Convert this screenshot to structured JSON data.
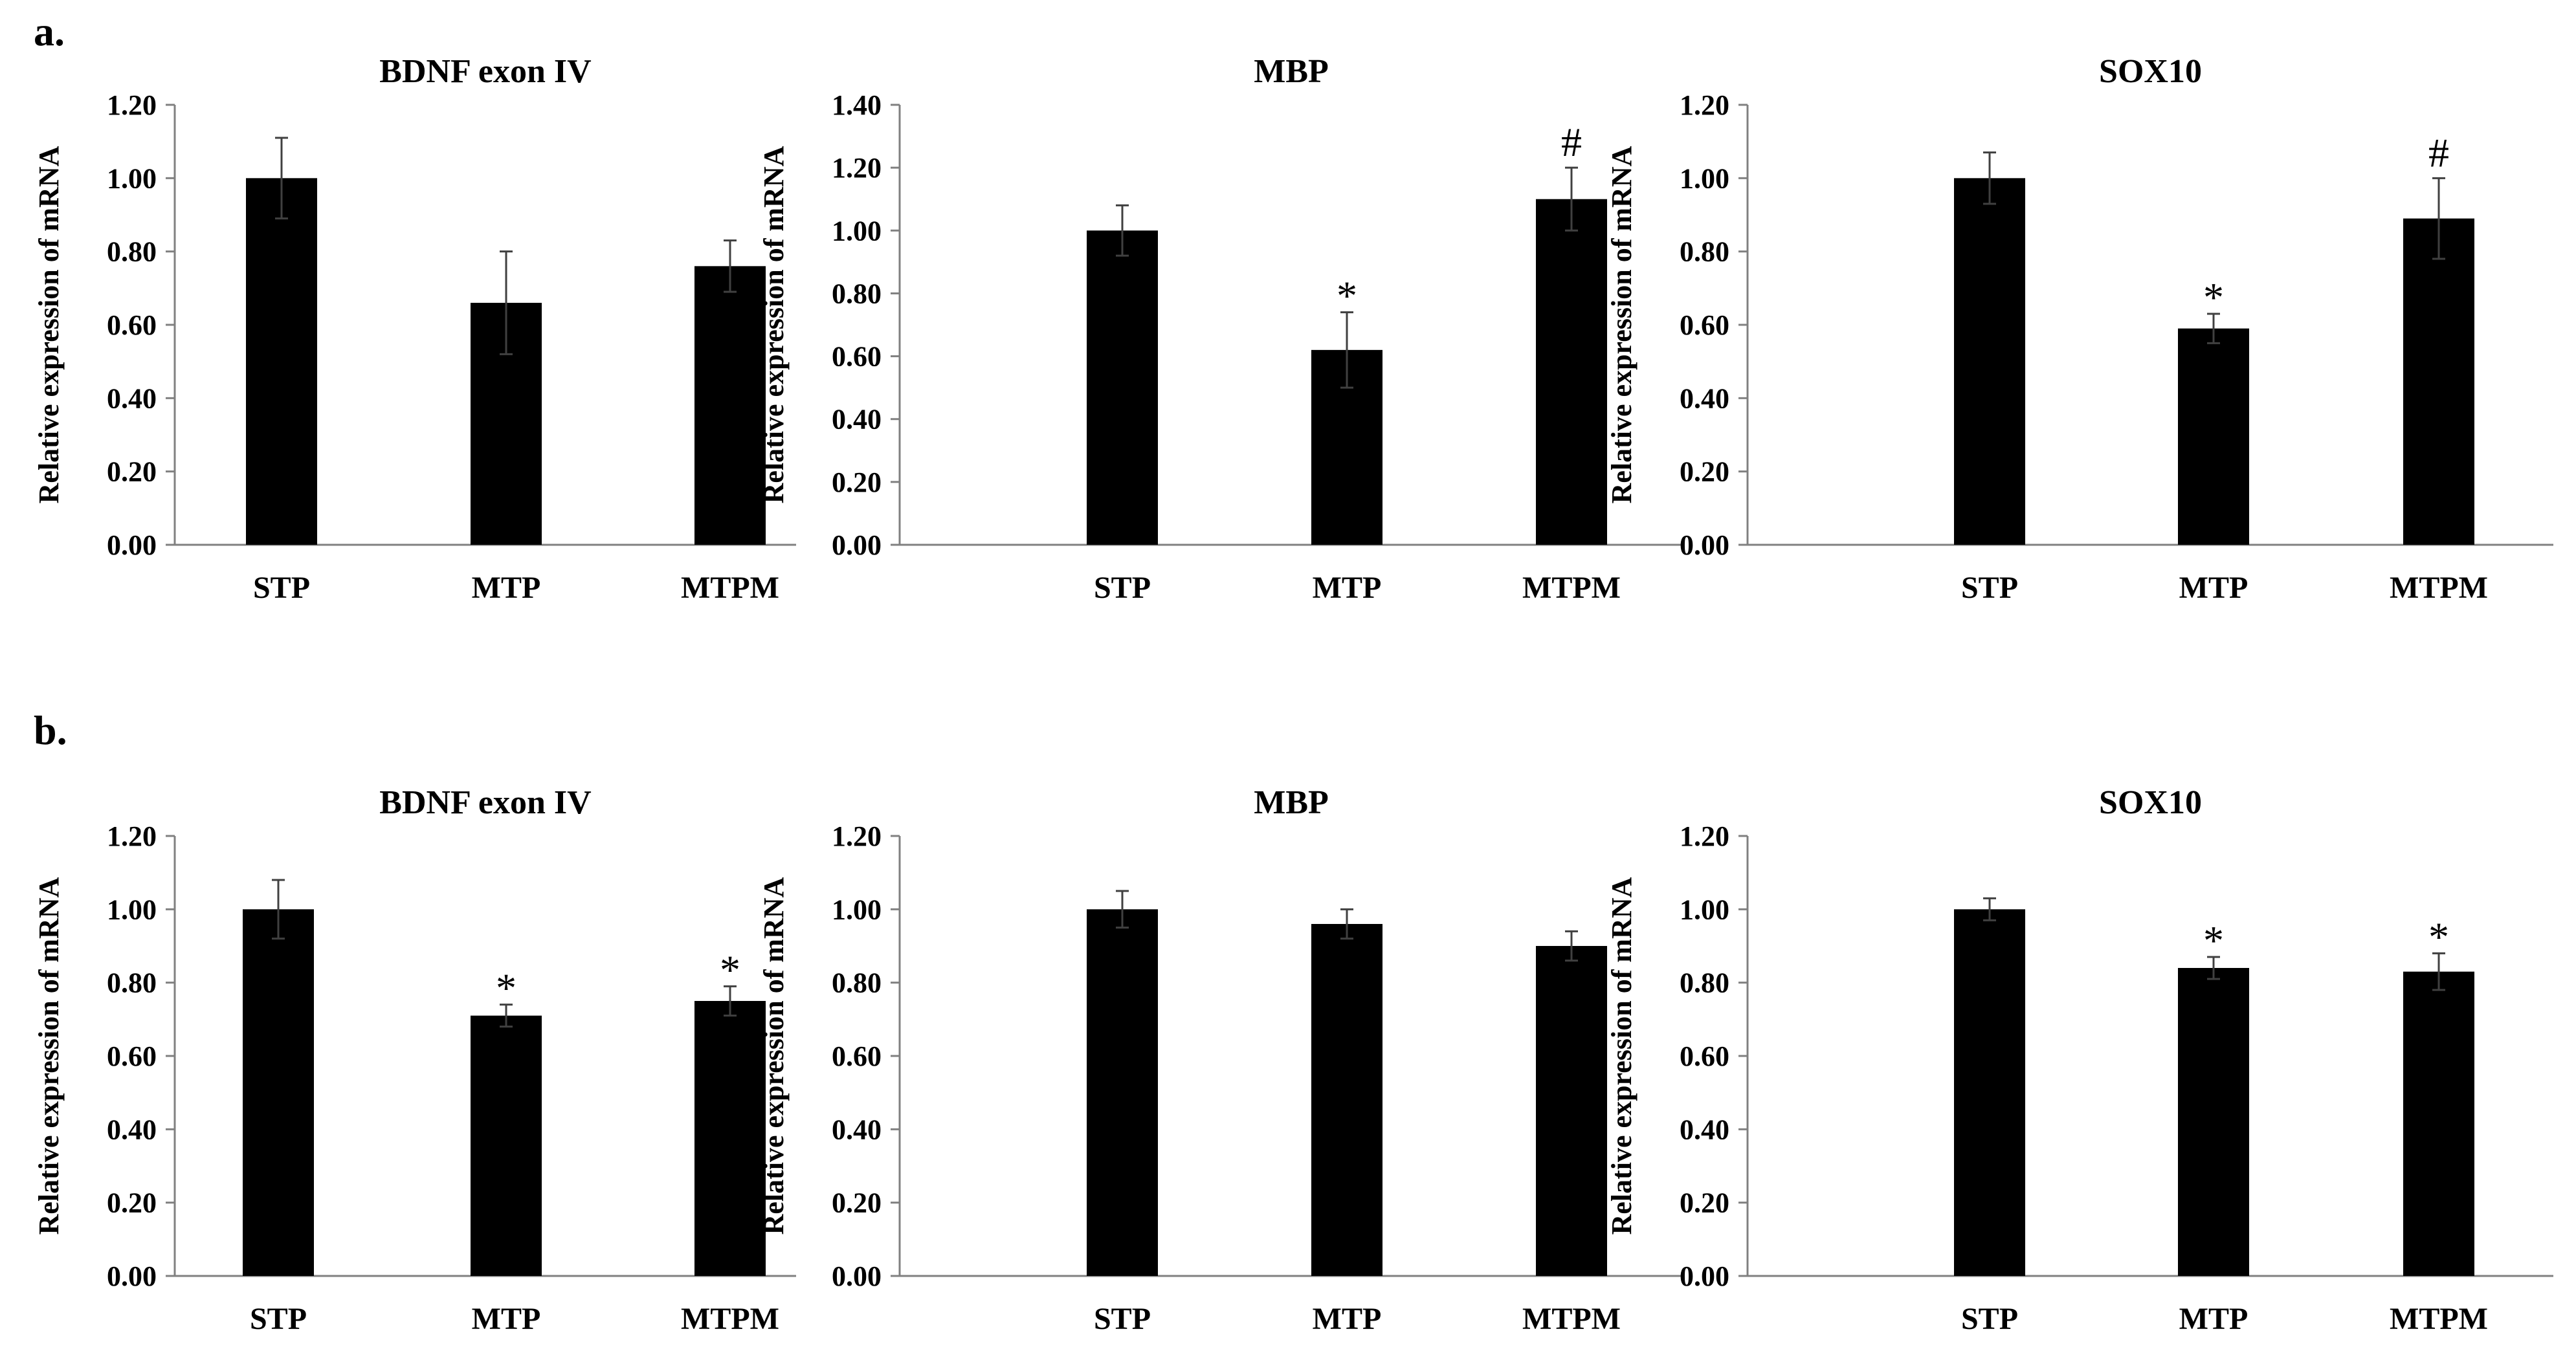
{
  "panel_labels": [
    "a.",
    "b."
  ],
  "chart_data": [
    {
      "type": "bar",
      "panel": "a",
      "title": "BDNF exon IV",
      "xlabel": "",
      "ylabel": "Relative expression of mRNA",
      "categories": [
        "STP",
        "MTP",
        "MTPM"
      ],
      "values": [
        1.0,
        0.66,
        0.76
      ],
      "errors": [
        0.11,
        0.14,
        0.07
      ],
      "ylim": [
        0,
        1.2
      ],
      "yticks": [
        "0.00",
        "0.20",
        "0.40",
        "0.60",
        "0.80",
        "1.00",
        "1.20"
      ],
      "annotations": [
        "",
        "",
        ""
      ]
    },
    {
      "type": "bar",
      "panel": "a",
      "title": "MBP",
      "xlabel": "",
      "ylabel": "Relative expression of mRNA",
      "categories": [
        "STP",
        "MTP",
        "MTPM"
      ],
      "values": [
        1.0,
        0.62,
        1.1
      ],
      "errors": [
        0.08,
        0.12,
        0.1
      ],
      "ylim": [
        0,
        1.4
      ],
      "yticks": [
        "0.00",
        "0.20",
        "0.40",
        "0.60",
        "0.80",
        "1.00",
        "1.20",
        "1.40"
      ],
      "annotations": [
        "",
        "*",
        "#"
      ]
    },
    {
      "type": "bar",
      "panel": "a",
      "title": "SOX10",
      "xlabel": "",
      "ylabel": "Relative expression of mRNA",
      "categories": [
        "STP",
        "MTP",
        "MTPM"
      ],
      "values": [
        1.0,
        0.59,
        0.89
      ],
      "errors": [
        0.07,
        0.04,
        0.11
      ],
      "ylim": [
        0,
        1.2
      ],
      "yticks": [
        "0.00",
        "0.20",
        "0.40",
        "0.60",
        "0.80",
        "1.00",
        "1.20"
      ],
      "annotations": [
        "",
        "*",
        "#"
      ]
    },
    {
      "type": "bar",
      "panel": "b",
      "title": "BDNF exon IV",
      "xlabel": "",
      "ylabel": "Relative expression of mRNA",
      "categories": [
        "STP",
        "MTP",
        "MTPM"
      ],
      "values": [
        1.0,
        0.71,
        0.75
      ],
      "errors": [
        0.08,
        0.03,
        0.04
      ],
      "ylim": [
        0,
        1.2
      ],
      "yticks": [
        "0.00",
        "0.20",
        "0.40",
        "0.60",
        "0.80",
        "1.00",
        "1.20"
      ],
      "annotations": [
        "",
        "*",
        "*"
      ]
    },
    {
      "type": "bar",
      "panel": "b",
      "title": "MBP",
      "xlabel": "",
      "ylabel": "Relative expression of mRNA",
      "categories": [
        "STP",
        "MTP",
        "MTPM"
      ],
      "values": [
        1.0,
        0.96,
        0.9
      ],
      "errors": [
        0.05,
        0.04,
        0.04
      ],
      "ylim": [
        0,
        1.2
      ],
      "yticks": [
        "0.00",
        "0.20",
        "0.40",
        "0.60",
        "0.80",
        "1.00",
        "1.20"
      ],
      "annotations": [
        "",
        "",
        ""
      ]
    },
    {
      "type": "bar",
      "panel": "b",
      "title": "SOX10",
      "xlabel": "",
      "ylabel": "Relative expression of mRNA",
      "categories": [
        "STP",
        "MTP",
        "MTPM"
      ],
      "values": [
        1.0,
        0.84,
        0.83
      ],
      "errors": [
        0.03,
        0.03,
        0.05
      ],
      "ylim": [
        0,
        1.2
      ],
      "yticks": [
        "0.00",
        "0.20",
        "0.40",
        "0.60",
        "0.80",
        "1.00",
        "1.20"
      ],
      "annotations": [
        "",
        "*",
        "*"
      ]
    }
  ]
}
